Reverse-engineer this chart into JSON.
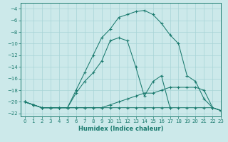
{
  "xlabel": "Humidex (Indice chaleur)",
  "bg_color": "#cce9ea",
  "grid_color": "#a8d4d6",
  "line_color": "#1a7a6e",
  "xlim": [
    -0.5,
    23
  ],
  "ylim": [
    -22.5,
    -3.0
  ],
  "xticks": [
    0,
    1,
    2,
    3,
    4,
    5,
    6,
    7,
    8,
    9,
    10,
    11,
    12,
    13,
    14,
    15,
    16,
    17,
    18,
    19,
    20,
    21,
    22,
    23
  ],
  "yticks": [
    -4,
    -6,
    -8,
    -10,
    -12,
    -14,
    -16,
    -18,
    -20,
    -22
  ],
  "series": [
    {
      "x": [
        0,
        1,
        2,
        3,
        4,
        5,
        6,
        7,
        8,
        9,
        10,
        11,
        12,
        13,
        14,
        15,
        16,
        17,
        18,
        19,
        20,
        21,
        22,
        23
      ],
      "y": [
        -20,
        -20.5,
        -21,
        -21,
        -21,
        -21,
        -21,
        -21,
        -21,
        -21,
        -21,
        -21,
        -21,
        -21,
        -21,
        -21,
        -21,
        -21,
        -21,
        -21,
        -21,
        -21,
        -21,
        -21.5
      ]
    },
    {
      "x": [
        0,
        1,
        2,
        3,
        4,
        5,
        6,
        7,
        8,
        9,
        10,
        11,
        12,
        13,
        14,
        15,
        16,
        17,
        18,
        19,
        20,
        21,
        22,
        23
      ],
      "y": [
        -20,
        -20.5,
        -21,
        -21,
        -21,
        -21,
        -21,
        -21,
        -21,
        -21,
        -20.5,
        -20,
        -19.5,
        -19,
        -18.5,
        -18.5,
        -18,
        -17.5,
        -17.5,
        -17.5,
        -17.5,
        -18,
        -21,
        -21.5
      ]
    },
    {
      "x": [
        0,
        1,
        2,
        3,
        4,
        5,
        6,
        7,
        8,
        9,
        10,
        11,
        12,
        13,
        14,
        15,
        16,
        17
      ],
      "y": [
        -20,
        -20.5,
        -21,
        -21,
        -21,
        -21,
        -18.5,
        -16.5,
        -15,
        -13,
        -9.5,
        -9,
        -9.5,
        -14,
        -19,
        -16.5,
        -15.5,
        -21
      ]
    },
    {
      "x": [
        0,
        1,
        2,
        3,
        4,
        5,
        6,
        7,
        8,
        9,
        10,
        11,
        12,
        13,
        14,
        15,
        16,
        17,
        18,
        19,
        20,
        21,
        22,
        23
      ],
      "y": [
        -20,
        -20.5,
        -21,
        -21,
        -21,
        -21,
        -18,
        -15,
        -12,
        -9,
        -7.5,
        -5.5,
        -5,
        -4.5,
        -4.3,
        -5,
        -6.5,
        -8.5,
        -10,
        -15.5,
        -16.5,
        -19.5,
        -21,
        -21.5
      ]
    }
  ]
}
